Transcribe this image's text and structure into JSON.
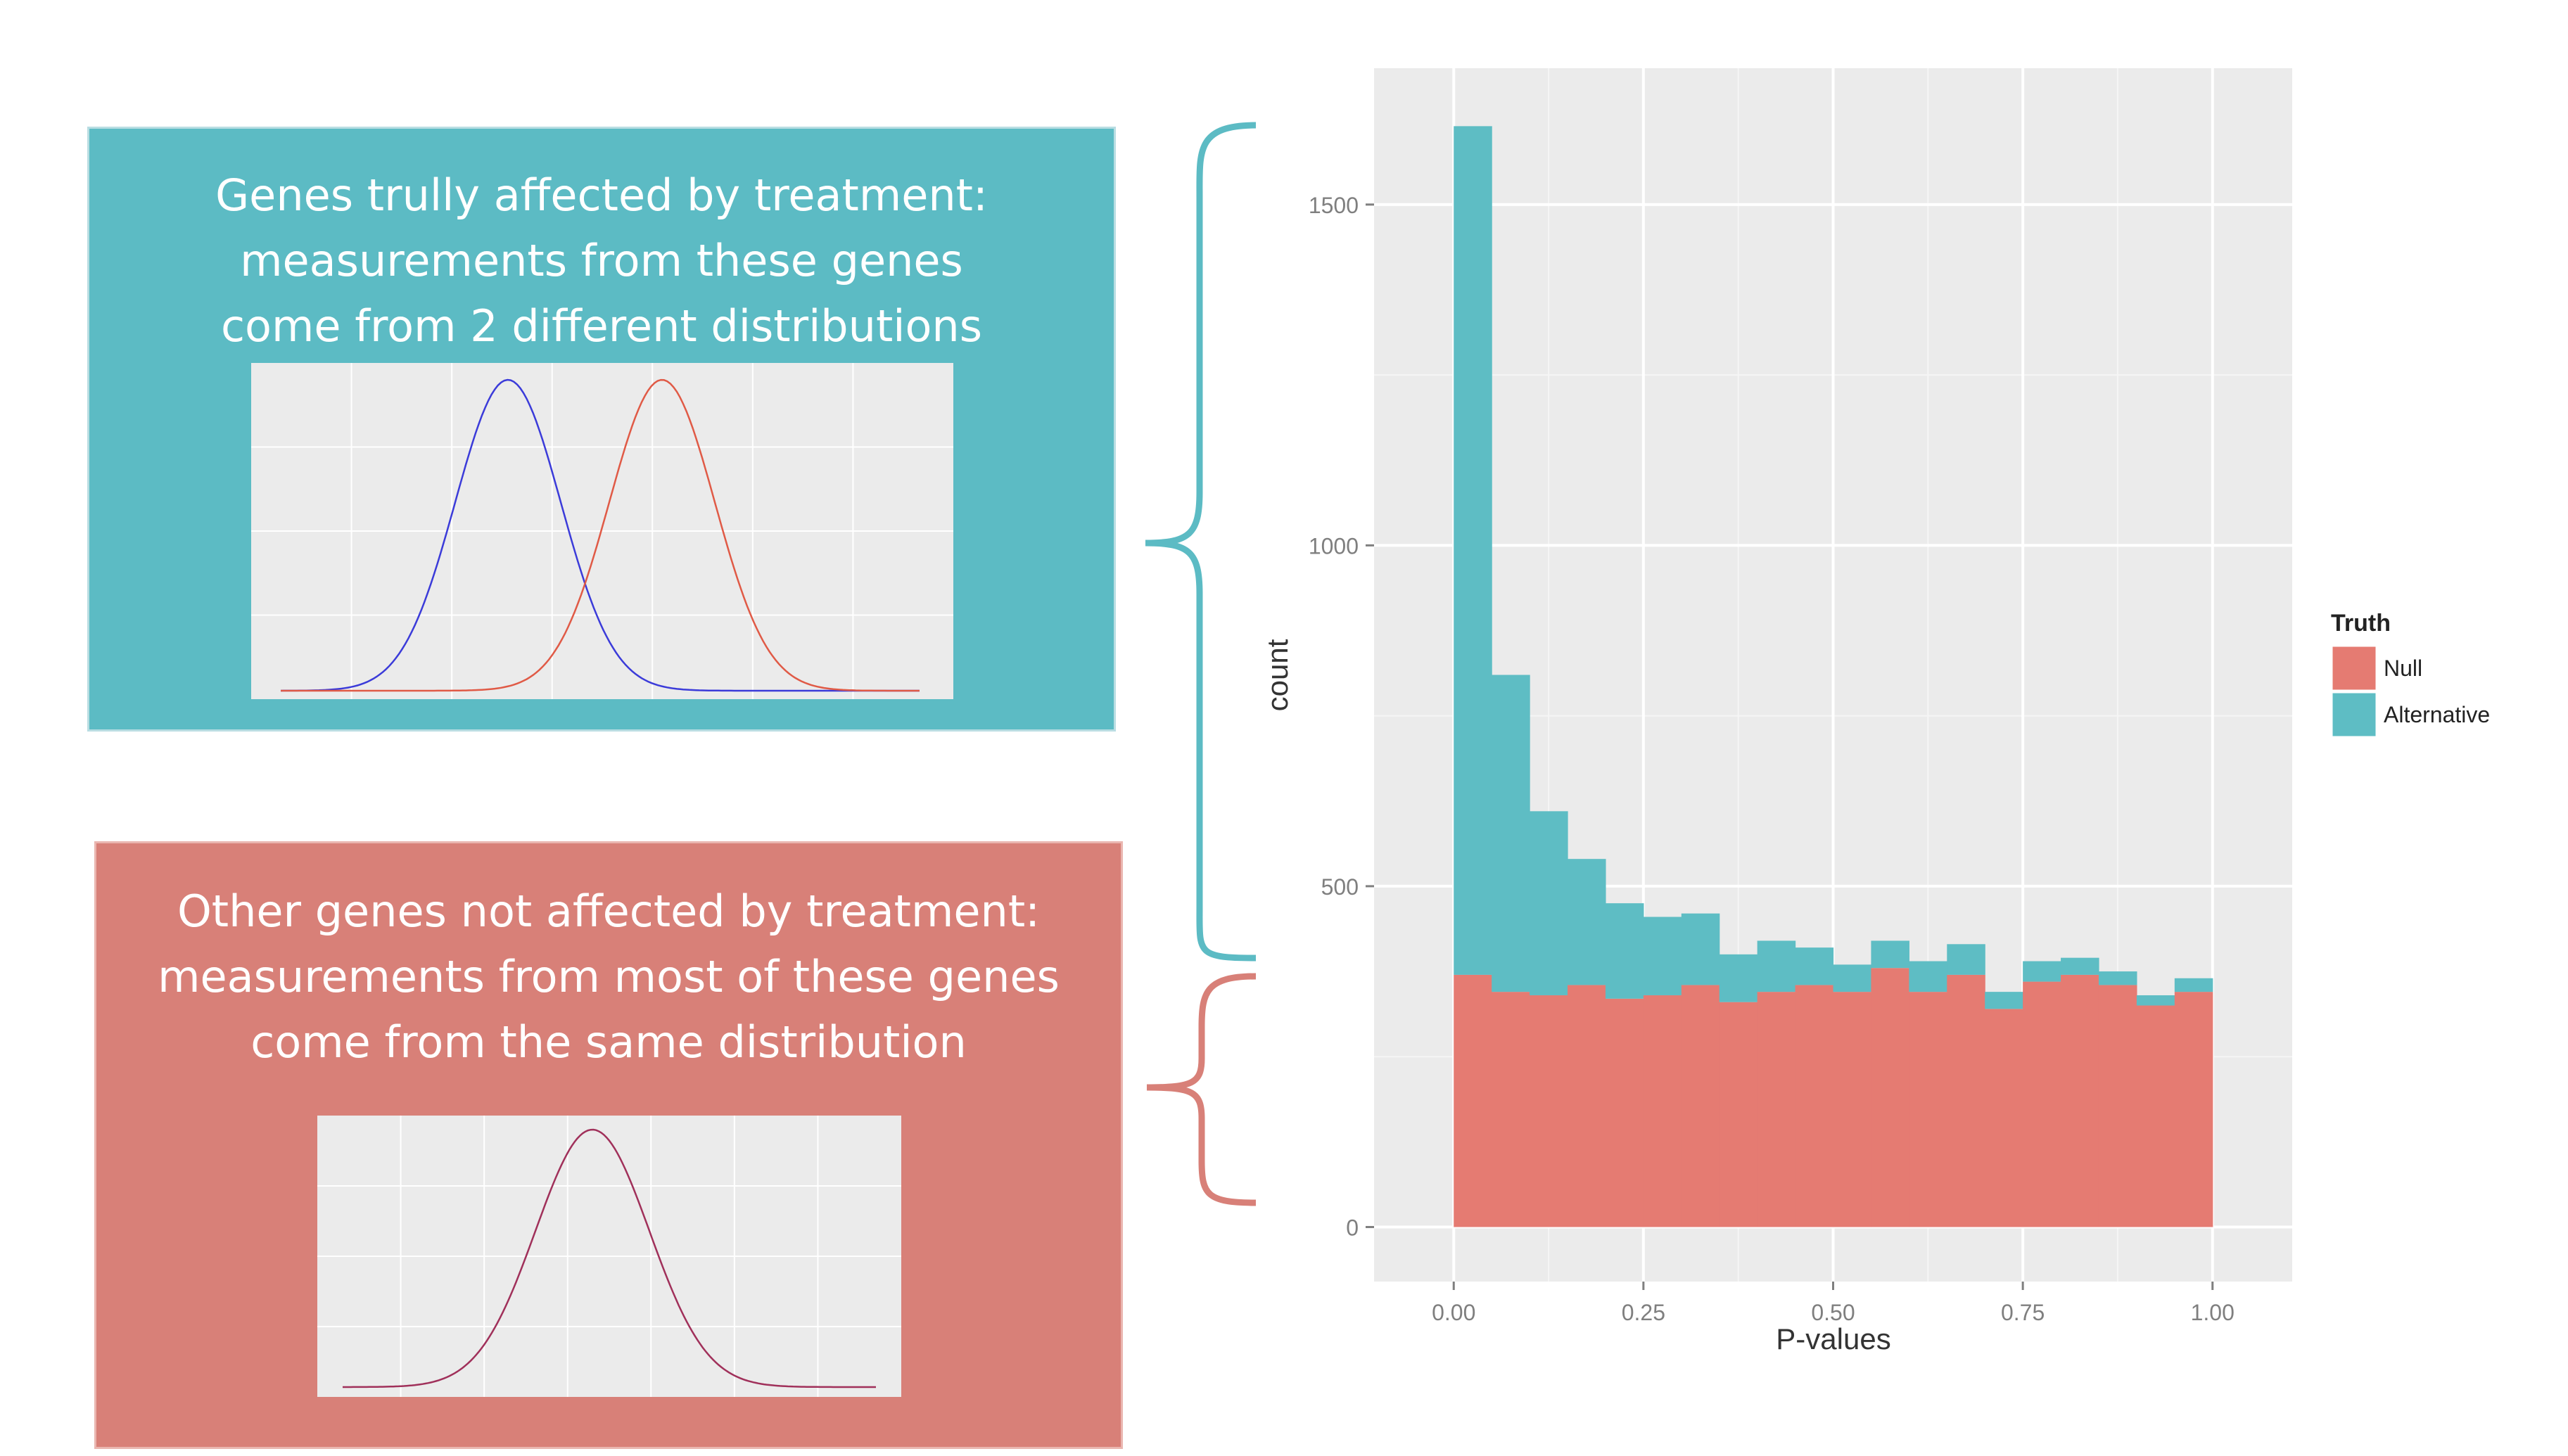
{
  "panels": {
    "affected": {
      "lines": [
        "Genes trully affected by treatment:",
        "measurements from these genes",
        "come from 2 different distributions"
      ],
      "color": "#5cbbc4",
      "curve_colors": [
        "#3b3bd9",
        "#e05a46"
      ]
    },
    "unaffected": {
      "lines": [
        "Other genes not affected by treatment:",
        "measurements from most of these genes",
        "come from the same distribution"
      ],
      "color": "#d88078",
      "curve_colors": [
        "#a0305a"
      ]
    }
  },
  "brace_colors": {
    "affected": "#5cbbc4",
    "unaffected": "#d88078"
  },
  "chart_data": {
    "type": "bar",
    "stacked": true,
    "xlabel": "P-values",
    "ylabel": "count",
    "xlim": [
      -0.105,
      1.105
    ],
    "ylim": [
      -80,
      1700
    ],
    "x_ticks": [
      "0.00",
      "0.25",
      "0.50",
      "0.75",
      "1.00"
    ],
    "y_ticks": [
      "0",
      "500",
      "1000",
      "1500"
    ],
    "bin_width": 0.05,
    "bin_starts": [
      0.0,
      0.05,
      0.1,
      0.15,
      0.2,
      0.25,
      0.3,
      0.35,
      0.4,
      0.45,
      0.5,
      0.55,
      0.6,
      0.65,
      0.7,
      0.75,
      0.8,
      0.85,
      0.9,
      0.95
    ],
    "series": [
      {
        "name": "Null",
        "color": "#e57b72",
        "values": [
          370,
          345,
          340,
          355,
          335,
          340,
          355,
          330,
          345,
          355,
          345,
          380,
          345,
          370,
          320,
          360,
          370,
          355,
          325,
          345
        ]
      },
      {
        "name": "Alternative",
        "color": "#5ebdc4",
        "values": [
          1245,
          465,
          270,
          185,
          140,
          115,
          105,
          70,
          75,
          55,
          40,
          40,
          45,
          45,
          25,
          30,
          25,
          20,
          15,
          20
        ]
      }
    ],
    "legend": {
      "title": "Truth",
      "position": "right"
    },
    "grid": true,
    "background": "#ebebeb"
  }
}
